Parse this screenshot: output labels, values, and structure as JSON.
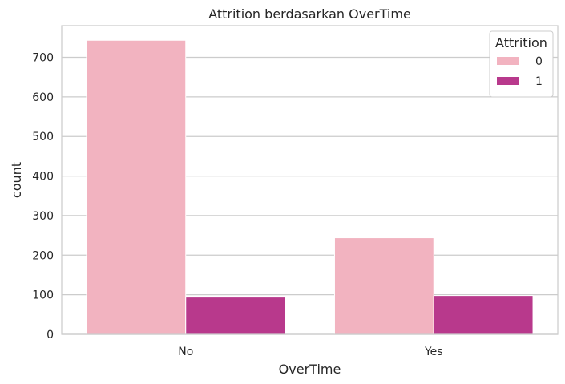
{
  "chart_data": {
    "type": "bar",
    "title": "Attrition berdasarkan OverTime",
    "xlabel": "OverTime",
    "ylabel": "count",
    "categories": [
      "No",
      "Yes"
    ],
    "series": [
      {
        "name": "0",
        "values": [
          743,
          244
        ],
        "color": "#f2b3c0"
      },
      {
        "name": "1",
        "values": [
          94,
          98
        ],
        "color": "#b8398c"
      }
    ],
    "ylim": [
      0,
      780
    ],
    "yticks": [
      0,
      100,
      200,
      300,
      400,
      500,
      600,
      700
    ],
    "grid": "horizontal",
    "legend": {
      "title": "Attrition",
      "placement": "top-right"
    }
  }
}
